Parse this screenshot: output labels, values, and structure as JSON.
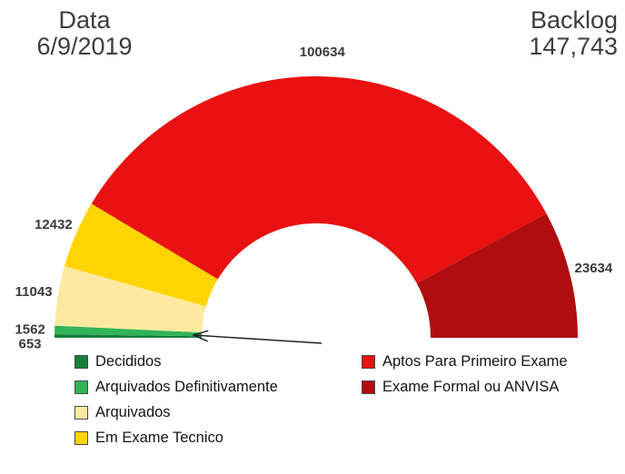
{
  "header": {
    "date_label": "Data",
    "date_value": "6/9/2019",
    "backlog_label": "Backlog",
    "backlog_value": "147,743"
  },
  "chart_data": {
    "type": "pie",
    "variant": "half-donut-gauge",
    "orientation": "semicircle from left baseline clockwise over the top to right baseline",
    "segments": [
      {
        "label": "Decididos",
        "value": 653,
        "color": "#157f3c"
      },
      {
        "label": "Arquivados Definitivamente",
        "value": 1562,
        "color": "#2fb457"
      },
      {
        "label": "Arquivados",
        "value": 11043,
        "color": "#fdeaa0"
      },
      {
        "label": "Em Exame Tecnico",
        "value": 12432,
        "color": "#ffd400"
      },
      {
        "label": "Aptos Para Primeiro Exame",
        "value": 100634,
        "color": "#e91111"
      },
      {
        "label": "Exame Formal ou ANVISA",
        "value": 23634,
        "color": "#b00e0e"
      }
    ],
    "legend_position": "bottom",
    "legend_columns": [
      [
        0,
        1,
        2,
        3
      ],
      [
        4,
        5
      ]
    ],
    "annotations": [
      {
        "type": "arrow",
        "target": "Decididos / Arquivados Definitivamente slivers at left baseline"
      }
    ]
  },
  "colors": {
    "header_text": "#3d3d3d",
    "value_label_text": "#3a3a3a",
    "arrow": "#1f1f1f"
  }
}
